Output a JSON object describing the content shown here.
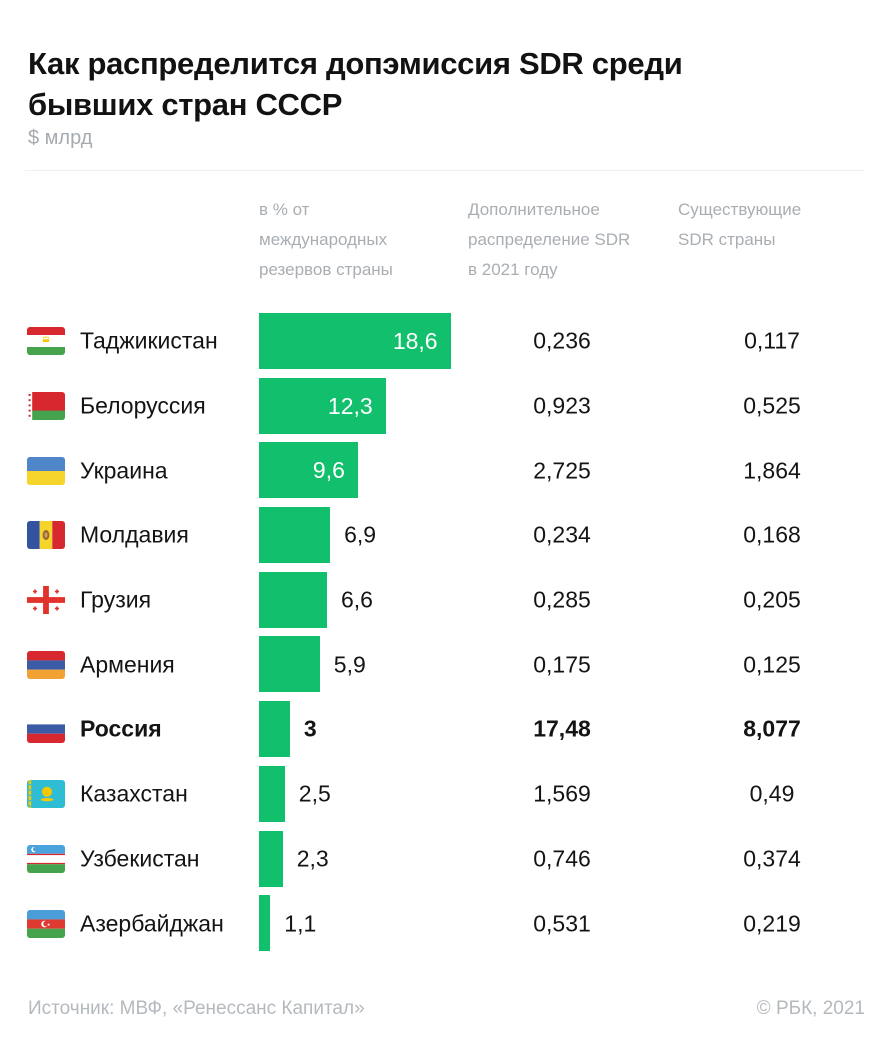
{
  "title": {
    "line1": "Как распределится допэмиссия SDR среди",
    "line2": "бывших стран СССР",
    "full": "Как распределится допэмиссия SDR среди бывших стран СССР"
  },
  "unit_label": "$ млрд",
  "colors": {
    "bar_green": "#12bf6c",
    "text_dark": "#141414",
    "text_muted": "#a9aeb3"
  },
  "columns": {
    "bar": "в % от международных резервов страны",
    "additional": "Дополнительное распределение SDR в 2021 году",
    "existing": "Существующие SDR страны"
  },
  "rows": [
    {
      "country": "Таджикистан",
      "flag": "tajikistan",
      "bar_display": "18,6",
      "bar_value": 18.6,
      "additional": "0,236",
      "existing": "0,117",
      "bold": false
    },
    {
      "country": "Белоруссия",
      "flag": "belarus",
      "bar_display": "12,3",
      "bar_value": 12.3,
      "additional": "0,923",
      "existing": "0,525",
      "bold": false
    },
    {
      "country": "Украина",
      "flag": "ukraine",
      "bar_display": "9,6",
      "bar_value": 9.6,
      "additional": "2,725",
      "existing": "1,864",
      "bold": false
    },
    {
      "country": "Молдавия",
      "flag": "moldova",
      "bar_display": "6,9",
      "bar_value": 6.9,
      "additional": "0,234",
      "existing": "0,168",
      "bold": false
    },
    {
      "country": "Грузия",
      "flag": "georgia",
      "bar_display": "6,6",
      "bar_value": 6.6,
      "additional": "0,285",
      "existing": "0,205",
      "bold": false
    },
    {
      "country": "Армения",
      "flag": "armenia",
      "bar_display": "5,9",
      "bar_value": 5.9,
      "additional": "0,175",
      "existing": "0,125",
      "bold": false
    },
    {
      "country": "Россия",
      "flag": "russia",
      "bar_display": "3",
      "bar_value": 3,
      "additional": "17,48",
      "existing": "8,077",
      "bold": true
    },
    {
      "country": "Казахстан",
      "flag": "kazakhstan",
      "bar_display": "2,5",
      "bar_value": 2.5,
      "additional": "1,569",
      "existing": "0,49",
      "bold": false
    },
    {
      "country": "Узбекистан",
      "flag": "uzbekistan",
      "bar_display": "2,3",
      "bar_value": 2.3,
      "additional": "0,746",
      "existing": "0,374",
      "bold": false
    },
    {
      "country": "Азербайджан",
      "flag": "azerbaijan",
      "bar_display": "1,1",
      "bar_value": 1.1,
      "additional": "0,531",
      "existing": "0,219",
      "bold": false
    }
  ],
  "footer": {
    "source": "Источник:  МВФ, «Ренессанс Капитал»",
    "copyright": "© РБК, 2021"
  },
  "chart_data": {
    "type": "bar",
    "orientation": "horizontal",
    "title": "Как распределится допэмиссия SDR среди бывших стран СССР",
    "unit": "$ млрд",
    "categories": [
      "Таджикистан",
      "Белоруссия",
      "Украина",
      "Молдавия",
      "Грузия",
      "Армения",
      "Россия",
      "Казахстан",
      "Узбекистан",
      "Азербайджан"
    ],
    "series": [
      {
        "name": "в % от международных резервов страны",
        "unit": "%",
        "values": [
          18.6,
          12.3,
          9.6,
          6.9,
          6.6,
          5.9,
          3,
          2.5,
          2.3,
          1.1
        ]
      },
      {
        "name": "Дополнительное распределение SDR в 2021 году",
        "unit": "$ млрд",
        "values": [
          0.236,
          0.923,
          2.725,
          0.234,
          0.285,
          0.175,
          17.48,
          1.569,
          0.746,
          0.531
        ]
      },
      {
        "name": "Существующие SDR страны",
        "unit": "$ млрд",
        "values": [
          0.117,
          0.525,
          1.864,
          0.168,
          0.205,
          0.125,
          8.077,
          0.49,
          0.374,
          0.219
        ]
      }
    ],
    "highlighted_category": "Россия",
    "bar_color": "#12bf6c",
    "grid": false,
    "legend": false,
    "value_labels": true,
    "source": "МВФ, «Ренессанс Капитал»"
  }
}
